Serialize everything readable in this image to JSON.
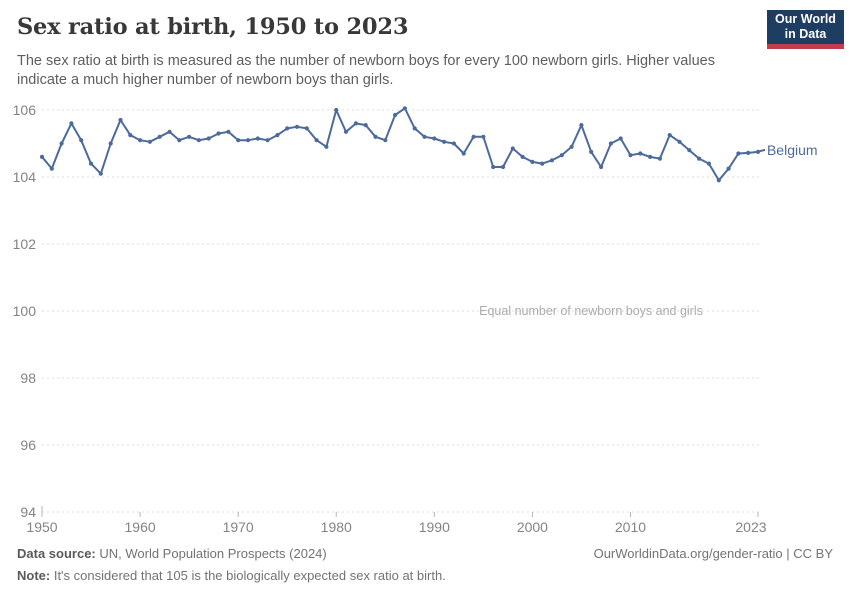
{
  "header": {
    "title": "Sex ratio at birth, 1950 to 2023",
    "subtitle": "The sex ratio at birth is measured as the number of newborn boys for every 100 newborn girls. Higher values indicate a much higher number of newborn boys than girls."
  },
  "logo": {
    "line1": "Our World",
    "line2": "in Data",
    "bg_color": "#1d3d63",
    "bar_color": "#c13d4e"
  },
  "chart_data": {
    "type": "line",
    "title": "Sex ratio at birth, 1950 to 2023",
    "grid": "horizontal-dashed",
    "legend_position": "end-of-line-label",
    "ylim": [
      94,
      106.5
    ],
    "yticks": [
      94,
      96,
      98,
      100,
      102,
      104,
      106
    ],
    "xticks": [
      1950,
      1960,
      1970,
      1980,
      1990,
      2000,
      2010,
      2023
    ],
    "annotation": {
      "text": "Equal number of newborn boys and girls",
      "y": 100
    },
    "line_color": "#4c6a9c",
    "series": [
      {
        "name": "Belgium",
        "color": "#4c6a9c",
        "x": [
          1950,
          1951,
          1952,
          1953,
          1954,
          1955,
          1956,
          1957,
          1958,
          1959,
          1960,
          1961,
          1962,
          1963,
          1964,
          1965,
          1966,
          1967,
          1968,
          1969,
          1970,
          1971,
          1972,
          1973,
          1974,
          1975,
          1976,
          1977,
          1978,
          1979,
          1980,
          1981,
          1982,
          1983,
          1984,
          1985,
          1986,
          1987,
          1988,
          1989,
          1990,
          1991,
          1992,
          1993,
          1994,
          1995,
          1996,
          1997,
          1998,
          1999,
          2000,
          2001,
          2002,
          2003,
          2004,
          2005,
          2006,
          2007,
          2008,
          2009,
          2010,
          2011,
          2012,
          2013,
          2014,
          2015,
          2016,
          2017,
          2018,
          2019,
          2020,
          2021,
          2022,
          2023
        ],
        "values": [
          104.6,
          104.25,
          105.0,
          105.6,
          105.1,
          104.4,
          104.1,
          105.0,
          105.7,
          105.25,
          105.1,
          105.05,
          105.2,
          105.35,
          105.1,
          105.2,
          105.1,
          105.15,
          105.3,
          105.35,
          105.1,
          105.1,
          105.15,
          105.1,
          105.25,
          105.45,
          105.5,
          105.45,
          105.1,
          104.9,
          106.0,
          105.35,
          105.6,
          105.55,
          105.2,
          105.1,
          105.85,
          106.05,
          105.45,
          105.2,
          105.15,
          105.05,
          105.0,
          104.7,
          105.2,
          105.2,
          104.3,
          104.3,
          104.85,
          104.6,
          104.45,
          104.4,
          104.5,
          104.65,
          104.9,
          105.55,
          104.75,
          104.3,
          105.0,
          105.15,
          104.65,
          104.7,
          104.6,
          104.55,
          105.25,
          105.05,
          104.8,
          104.55,
          104.4,
          103.9,
          104.25,
          104.7,
          104.72,
          104.75
        ]
      }
    ]
  },
  "footer": {
    "data_source_label": "Data source:",
    "data_source_value": " UN, World Population Prospects (2024)",
    "note_label": "Note:",
    "note_value": " It's considered that 105 is the biologically expected sex ratio at birth.",
    "url_text": "OurWorldinData.org/gender-ratio | CC BY"
  }
}
